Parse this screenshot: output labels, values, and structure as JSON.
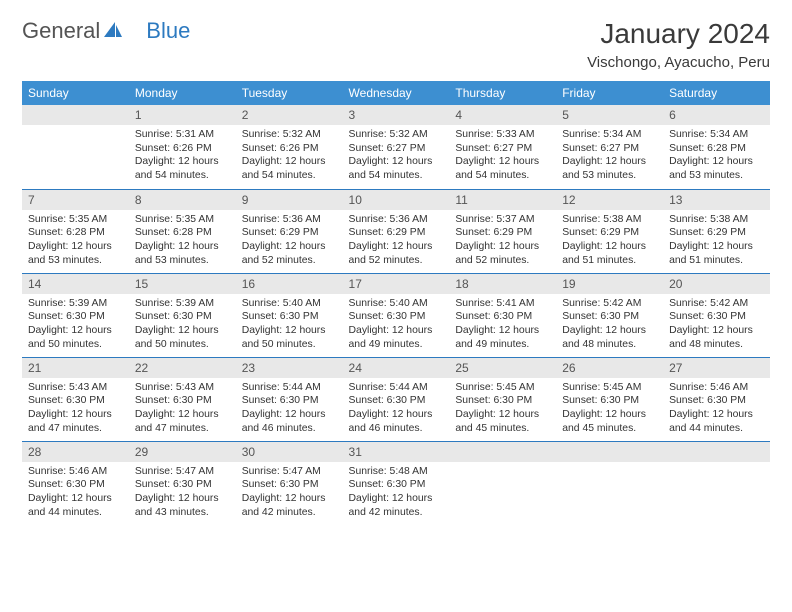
{
  "brand": {
    "name_part1": "General",
    "name_part2": "Blue"
  },
  "title": "January 2024",
  "location": "Vischongo, Ayacucho, Peru",
  "colors": {
    "header_bg": "#3d8fd1",
    "header_text": "#ffffff",
    "daynum_bg": "#e8e8e8",
    "rule": "#2d7ac0",
    "text": "#333333"
  },
  "day_names": [
    "Sunday",
    "Monday",
    "Tuesday",
    "Wednesday",
    "Thursday",
    "Friday",
    "Saturday"
  ],
  "weeks": [
    [
      {
        "n": "",
        "sr": "",
        "ss": "",
        "dl": ""
      },
      {
        "n": "1",
        "sr": "5:31 AM",
        "ss": "6:26 PM",
        "dl": "12 hours and 54 minutes."
      },
      {
        "n": "2",
        "sr": "5:32 AM",
        "ss": "6:26 PM",
        "dl": "12 hours and 54 minutes."
      },
      {
        "n": "3",
        "sr": "5:32 AM",
        "ss": "6:27 PM",
        "dl": "12 hours and 54 minutes."
      },
      {
        "n": "4",
        "sr": "5:33 AM",
        "ss": "6:27 PM",
        "dl": "12 hours and 54 minutes."
      },
      {
        "n": "5",
        "sr": "5:34 AM",
        "ss": "6:27 PM",
        "dl": "12 hours and 53 minutes."
      },
      {
        "n": "6",
        "sr": "5:34 AM",
        "ss": "6:28 PM",
        "dl": "12 hours and 53 minutes."
      }
    ],
    [
      {
        "n": "7",
        "sr": "5:35 AM",
        "ss": "6:28 PM",
        "dl": "12 hours and 53 minutes."
      },
      {
        "n": "8",
        "sr": "5:35 AM",
        "ss": "6:28 PM",
        "dl": "12 hours and 53 minutes."
      },
      {
        "n": "9",
        "sr": "5:36 AM",
        "ss": "6:29 PM",
        "dl": "12 hours and 52 minutes."
      },
      {
        "n": "10",
        "sr": "5:36 AM",
        "ss": "6:29 PM",
        "dl": "12 hours and 52 minutes."
      },
      {
        "n": "11",
        "sr": "5:37 AM",
        "ss": "6:29 PM",
        "dl": "12 hours and 52 minutes."
      },
      {
        "n": "12",
        "sr": "5:38 AM",
        "ss": "6:29 PM",
        "dl": "12 hours and 51 minutes."
      },
      {
        "n": "13",
        "sr": "5:38 AM",
        "ss": "6:29 PM",
        "dl": "12 hours and 51 minutes."
      }
    ],
    [
      {
        "n": "14",
        "sr": "5:39 AM",
        "ss": "6:30 PM",
        "dl": "12 hours and 50 minutes."
      },
      {
        "n": "15",
        "sr": "5:39 AM",
        "ss": "6:30 PM",
        "dl": "12 hours and 50 minutes."
      },
      {
        "n": "16",
        "sr": "5:40 AM",
        "ss": "6:30 PM",
        "dl": "12 hours and 50 minutes."
      },
      {
        "n": "17",
        "sr": "5:40 AM",
        "ss": "6:30 PM",
        "dl": "12 hours and 49 minutes."
      },
      {
        "n": "18",
        "sr": "5:41 AM",
        "ss": "6:30 PM",
        "dl": "12 hours and 49 minutes."
      },
      {
        "n": "19",
        "sr": "5:42 AM",
        "ss": "6:30 PM",
        "dl": "12 hours and 48 minutes."
      },
      {
        "n": "20",
        "sr": "5:42 AM",
        "ss": "6:30 PM",
        "dl": "12 hours and 48 minutes."
      }
    ],
    [
      {
        "n": "21",
        "sr": "5:43 AM",
        "ss": "6:30 PM",
        "dl": "12 hours and 47 minutes."
      },
      {
        "n": "22",
        "sr": "5:43 AM",
        "ss": "6:30 PM",
        "dl": "12 hours and 47 minutes."
      },
      {
        "n": "23",
        "sr": "5:44 AM",
        "ss": "6:30 PM",
        "dl": "12 hours and 46 minutes."
      },
      {
        "n": "24",
        "sr": "5:44 AM",
        "ss": "6:30 PM",
        "dl": "12 hours and 46 minutes."
      },
      {
        "n": "25",
        "sr": "5:45 AM",
        "ss": "6:30 PM",
        "dl": "12 hours and 45 minutes."
      },
      {
        "n": "26",
        "sr": "5:45 AM",
        "ss": "6:30 PM",
        "dl": "12 hours and 45 minutes."
      },
      {
        "n": "27",
        "sr": "5:46 AM",
        "ss": "6:30 PM",
        "dl": "12 hours and 44 minutes."
      }
    ],
    [
      {
        "n": "28",
        "sr": "5:46 AM",
        "ss": "6:30 PM",
        "dl": "12 hours and 44 minutes."
      },
      {
        "n": "29",
        "sr": "5:47 AM",
        "ss": "6:30 PM",
        "dl": "12 hours and 43 minutes."
      },
      {
        "n": "30",
        "sr": "5:47 AM",
        "ss": "6:30 PM",
        "dl": "12 hours and 42 minutes."
      },
      {
        "n": "31",
        "sr": "5:48 AM",
        "ss": "6:30 PM",
        "dl": "12 hours and 42 minutes."
      },
      {
        "n": "",
        "sr": "",
        "ss": "",
        "dl": ""
      },
      {
        "n": "",
        "sr": "",
        "ss": "",
        "dl": ""
      },
      {
        "n": "",
        "sr": "",
        "ss": "",
        "dl": ""
      }
    ]
  ],
  "labels": {
    "sunrise": "Sunrise:",
    "sunset": "Sunset:",
    "daylight": "Daylight:"
  }
}
